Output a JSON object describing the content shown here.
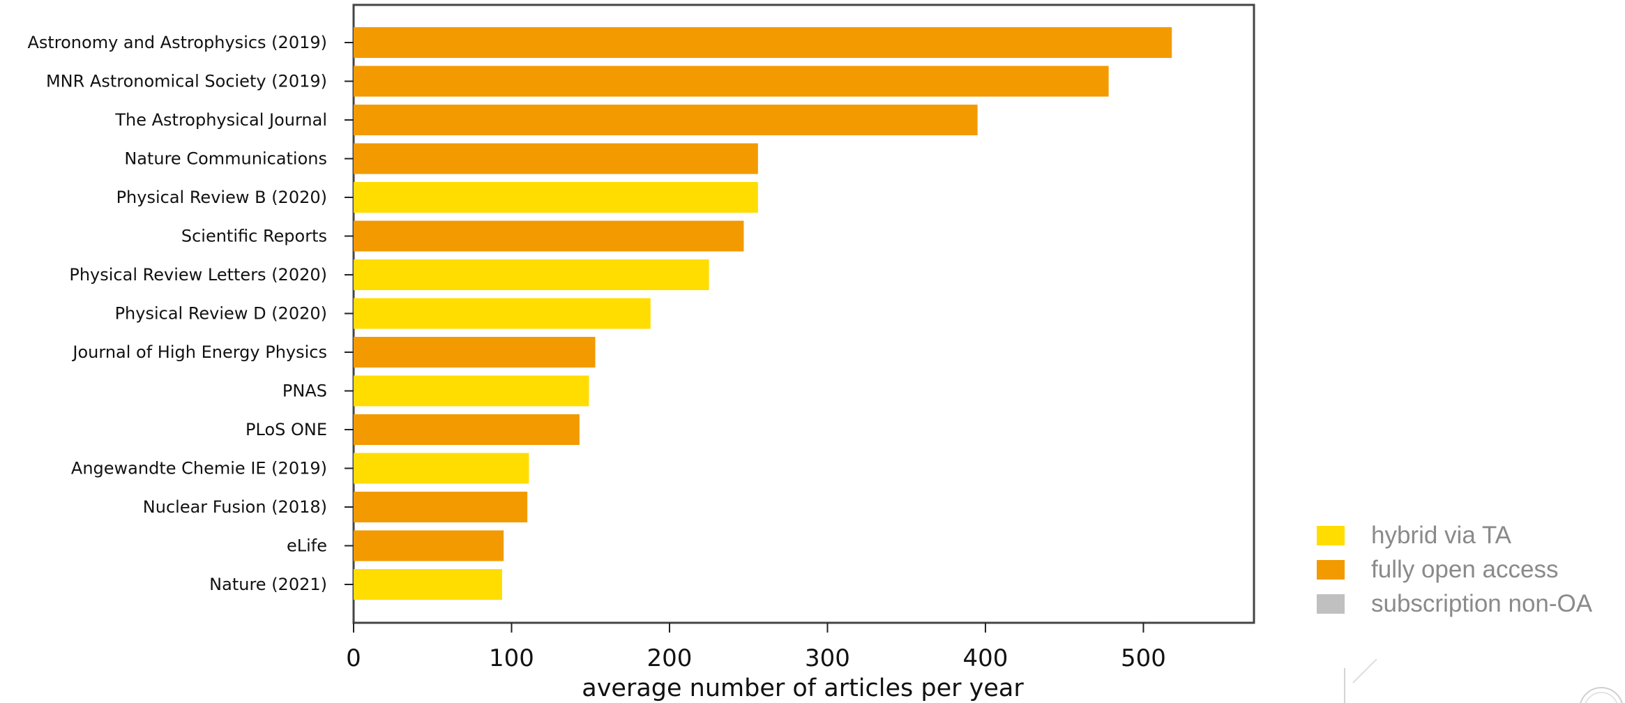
{
  "chart_data": {
    "type": "bar",
    "orientation": "horizontal",
    "categories": [
      "Astronomy and Astrophysics (2019)",
      "MNR Astronomical Society (2019)",
      "The Astrophysical Journal",
      "Nature Communications",
      "Physical Review B (2020)",
      "Scientific Reports",
      "Physical Review Letters (2020)",
      "Physical Review D (2020)",
      "Journal of High Energy Physics",
      "PNAS",
      "PLoS ONE",
      "Angewandte Chemie IE (2019)",
      "Nuclear Fusion (2018)",
      "eLife",
      "Nature (2021)"
    ],
    "values": [
      518,
      478,
      395,
      256,
      256,
      247,
      225,
      188,
      153,
      149,
      143,
      111,
      110,
      95,
      94
    ],
    "category_types": [
      "fully open access",
      "fully open access",
      "fully open access",
      "fully open access",
      "hybrid via TA",
      "fully open access",
      "hybrid via TA",
      "hybrid via TA",
      "fully open access",
      "hybrid via TA",
      "fully open access",
      "hybrid via TA",
      "fully open access",
      "fully open access",
      "hybrid via TA"
    ],
    "xlabel": "average number of articles per year",
    "ylabel": "",
    "title": "",
    "xlim": [
      0,
      570
    ],
    "xticks": [
      0,
      100,
      200,
      300,
      400,
      500
    ],
    "grid": false,
    "legend_position": "bottom-right",
    "legend": [
      {
        "label": "hybrid via TA",
        "color": "#ffdd00"
      },
      {
        "label": "fully open access",
        "color": "#f29a00"
      },
      {
        "label": "subscription non-OA",
        "color": "#c0c0c0"
      }
    ]
  }
}
